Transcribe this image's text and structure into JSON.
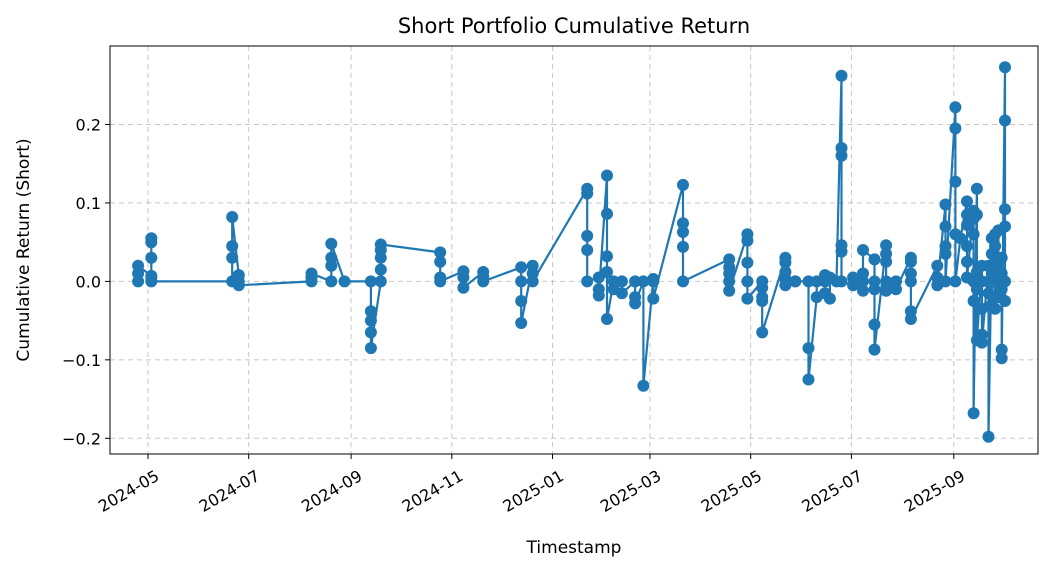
{
  "chart_data": {
    "type": "line",
    "title": "Short Portfolio Cumulative Return",
    "xlabel": "Timestamp",
    "ylabel": "Cumulative Return (Short)",
    "x_ticks": [
      "2024-05",
      "2024-07",
      "2024-09",
      "2024-11",
      "2025-01",
      "2025-03",
      "2025-05",
      "2025-07",
      "2025-09"
    ],
    "y_ticks": [
      -0.2,
      -0.1,
      0.0,
      0.1,
      0.2
    ],
    "y_tick_labels": [
      "−0.2",
      "−0.1",
      "0.0",
      "0.1",
      "0.2"
    ],
    "xlim": [
      "2024-04-08",
      "2025-10-22"
    ],
    "ylim": [
      -0.22,
      0.3
    ],
    "grid": true,
    "marker": "circle",
    "color": "#1f77b4",
    "series": [
      {
        "x": [
          "2024-04-25",
          "2024-04-25",
          "2024-04-25",
          "2024-05-03",
          "2024-05-03",
          "2024-05-03",
          "2024-05-03",
          "2024-05-03",
          "2024-05-03",
          "2024-06-21",
          "2024-06-21",
          "2024-06-21",
          "2024-06-21",
          "2024-06-25",
          "2024-06-25",
          "2024-06-25",
          "2024-08-08",
          "2024-08-08",
          "2024-08-08",
          "2024-08-20",
          "2024-08-20",
          "2024-08-20",
          "2024-08-20",
          "2024-08-28",
          "2024-09-13",
          "2024-09-13",
          "2024-09-13",
          "2024-09-13",
          "2024-09-13",
          "2024-09-19",
          "2024-09-19",
          "2024-09-19",
          "2024-09-19",
          "2024-09-19",
          "2024-10-25",
          "2024-10-25",
          "2024-10-25",
          "2024-10-25",
          "2024-11-08",
          "2024-11-08",
          "2024-11-08",
          "2024-11-20",
          "2024-11-20",
          "2024-11-20",
          "2024-12-13",
          "2024-12-13",
          "2024-12-13",
          "2024-12-13",
          "2024-12-20",
          "2024-12-20",
          "2024-12-20",
          "2025-01-22",
          "2025-01-22",
          "2025-01-22",
          "2025-01-22",
          "2025-01-22",
          "2025-01-29",
          "2025-01-29",
          "2025-01-29",
          "2025-02-03",
          "2025-02-03",
          "2025-02-03",
          "2025-02-03",
          "2025-02-03",
          "2025-02-07",
          "2025-02-07",
          "2025-02-12",
          "2025-02-12",
          "2025-02-20",
          "2025-02-20",
          "2025-02-20",
          "2025-02-25",
          "2025-02-25",
          "2025-03-03",
          "2025-03-03",
          "2025-03-03",
          "2025-03-21",
          "2025-03-21",
          "2025-03-21",
          "2025-03-21",
          "2025-03-21",
          "2025-04-18",
          "2025-04-18",
          "2025-04-18",
          "2025-04-18",
          "2025-04-18",
          "2025-04-29",
          "2025-04-29",
          "2025-04-29",
          "2025-04-29",
          "2025-04-29",
          "2025-05-08",
          "2025-05-08",
          "2025-05-08",
          "2025-05-08",
          "2025-05-08",
          "2025-05-22",
          "2025-05-22",
          "2025-05-22",
          "2025-05-22",
          "2025-05-22",
          "2025-05-28",
          "2025-05-28",
          "2025-06-05",
          "2025-06-05",
          "2025-06-05",
          "2025-06-10",
          "2025-06-10",
          "2025-06-15",
          "2025-06-15",
          "2025-06-15",
          "2025-06-18",
          "2025-06-18",
          "2025-06-22",
          "2025-06-25",
          "2025-06-25",
          "2025-06-25",
          "2025-06-25",
          "2025-06-25",
          "2025-06-25",
          "2025-07-02",
          "2025-07-02",
          "2025-07-08",
          "2025-07-08",
          "2025-07-08",
          "2025-07-08",
          "2025-07-15",
          "2025-07-15",
          "2025-07-15",
          "2025-07-15",
          "2025-07-15",
          "2025-07-22",
          "2025-07-22",
          "2025-07-22",
          "2025-07-22",
          "2025-07-22",
          "2025-07-28",
          "2025-07-28",
          "2025-08-06",
          "2025-08-06",
          "2025-08-06",
          "2025-08-06",
          "2025-08-06",
          "2025-08-06",
          "2025-08-22",
          "2025-08-22",
          "2025-08-22",
          "2025-08-27",
          "2025-08-27",
          "2025-08-27",
          "2025-08-27",
          "2025-08-27",
          "2025-09-02",
          "2025-09-02",
          "2025-09-02",
          "2025-09-02",
          "2025-09-02",
          "2025-09-05",
          "2025-09-09",
          "2025-09-09",
          "2025-09-09",
          "2025-09-09",
          "2025-09-09",
          "2025-09-09",
          "2025-09-13",
          "2025-09-13",
          "2025-09-13",
          "2025-09-13",
          "2025-09-13",
          "2025-09-13",
          "2025-09-15",
          "2025-09-15",
          "2025-09-15",
          "2025-09-15",
          "2025-09-15",
          "2025-09-18",
          "2025-09-18",
          "2025-09-18",
          "2025-09-18",
          "2025-09-18",
          "2025-09-22",
          "2025-09-22",
          "2025-09-22",
          "2025-09-22",
          "2025-09-24",
          "2025-09-24",
          "2025-09-24",
          "2025-09-24",
          "2025-09-26",
          "2025-09-26",
          "2025-09-26",
          "2025-09-26",
          "2025-09-26",
          "2025-09-28",
          "2025-09-28",
          "2025-09-28",
          "2025-09-30",
          "2025-09-30",
          "2025-09-30",
          "2025-09-30",
          "2025-09-30",
          "2025-10-02",
          "2025-10-02",
          "2025-10-02",
          "2025-10-02",
          "2025-10-02",
          "2025-10-02"
        ],
        "y": [
          0.0,
          0.01,
          0.02,
          0.007,
          0.03,
          0.05,
          0.055,
          0.005,
          0.0,
          0.0,
          0.03,
          0.045,
          0.082,
          0.008,
          0.0,
          -0.005,
          0.0,
          0.005,
          0.01,
          0.0,
          0.02,
          0.03,
          0.048,
          0.0,
          0.0,
          -0.038,
          -0.05,
          -0.065,
          -0.085,
          0.0,
          0.015,
          0.03,
          0.04,
          0.047,
          0.037,
          0.025,
          0.005,
          0.0,
          0.013,
          0.005,
          -0.008,
          0.012,
          0.006,
          0.0,
          0.018,
          0.0,
          -0.025,
          -0.053,
          0.02,
          0.01,
          0.0,
          0.118,
          0.112,
          0.058,
          0.04,
          0.0,
          0.005,
          -0.01,
          -0.018,
          0.135,
          0.086,
          0.032,
          0.012,
          -0.048,
          0.0,
          -0.01,
          0.0,
          -0.015,
          0.0,
          -0.02,
          -0.028,
          0.0,
          -0.133,
          0.003,
          0.0,
          -0.022,
          0.123,
          0.074,
          0.063,
          0.044,
          0.0,
          0.028,
          0.018,
          0.01,
          0.0,
          -0.012,
          0.06,
          0.052,
          0.024,
          0.0,
          -0.022,
          0.0,
          -0.008,
          -0.02,
          -0.025,
          -0.065,
          0.03,
          0.024,
          0.012,
          0.003,
          -0.005,
          0.0,
          0.0,
          0.0,
          -0.085,
          -0.125,
          -0.02,
          0.0,
          0.008,
          0.0,
          -0.015,
          -0.022,
          0.005,
          0.0,
          0.262,
          0.17,
          0.16,
          0.046,
          0.038,
          0.0,
          -0.005,
          0.005,
          0.0,
          -0.012,
          0.01,
          0.04,
          0.028,
          0.0,
          -0.01,
          -0.055,
          -0.087,
          0.046,
          0.035,
          0.025,
          0.0,
          -0.012,
          0.0,
          -0.01,
          0.03,
          0.025,
          0.01,
          0.0,
          -0.038,
          -0.048,
          0.02,
          0.005,
          -0.005,
          0.098,
          0.07,
          0.045,
          0.035,
          0.0,
          0.222,
          0.195,
          0.127,
          0.06,
          0.0,
          0.055,
          0.102,
          0.085,
          0.072,
          0.045,
          0.025,
          0.005,
          0.09,
          0.08,
          0.06,
          0.0,
          -0.025,
          -0.168,
          0.118,
          0.085,
          0.012,
          -0.01,
          -0.075,
          0.02,
          0.0,
          -0.035,
          -0.068,
          -0.078,
          0.02,
          0.0,
          -0.015,
          -0.198,
          0.055,
          0.035,
          0.01,
          -0.03,
          0.06,
          0.045,
          0.025,
          0.0,
          -0.035,
          0.065,
          0.015,
          -0.02,
          0.03,
          0.01,
          -0.01,
          -0.087,
          -0.098,
          0.273,
          0.205,
          0.092,
          0.07,
          0.0,
          -0.025
        ]
      }
    ]
  }
}
